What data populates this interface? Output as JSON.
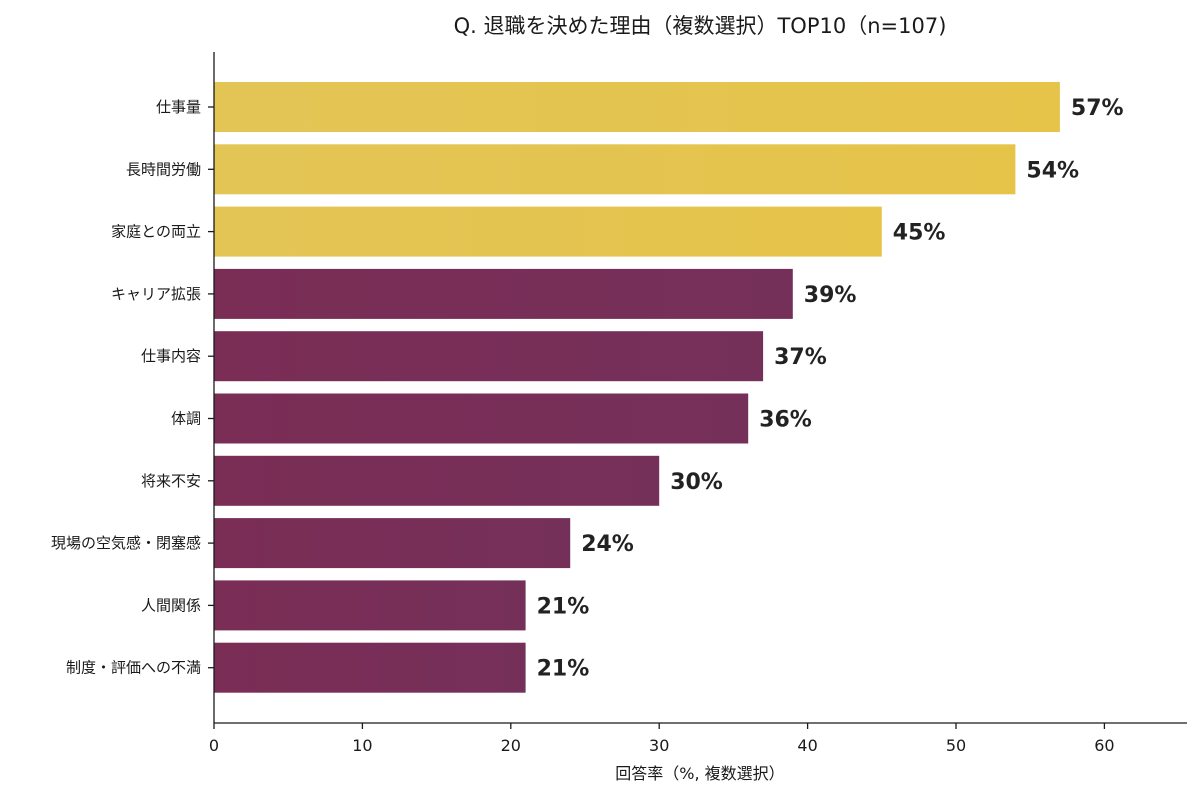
{
  "chart_data": {
    "type": "bar",
    "orientation": "horizontal",
    "title": "Q. 退職を決めた理由（複数選択）TOP10（n=107)",
    "xlabel": "回答率（%, 複数選択）",
    "ylabel": "",
    "xlim": [
      0,
      65
    ],
    "xticks": [
      0,
      10,
      20,
      30,
      40,
      50,
      60
    ],
    "grid": false,
    "categories": [
      "仕事量",
      "長時間労働",
      "家庭との両立",
      "キャリア拡張",
      "仕事内容",
      "体調",
      "将来不安",
      "現場の空気感・閉塞感",
      "人間関係",
      "制度・評価への不満"
    ],
    "values": [
      57,
      54,
      45,
      39,
      37,
      36,
      30,
      24,
      21,
      21
    ],
    "value_labels": [
      "57%",
      "54%",
      "45%",
      "39%",
      "37%",
      "36%",
      "30%",
      "24%",
      "21%",
      "21%"
    ],
    "colors": {
      "highlight": "#E6C44A",
      "default": "#7B2E58"
    },
    "highlight_top_n": 3
  }
}
